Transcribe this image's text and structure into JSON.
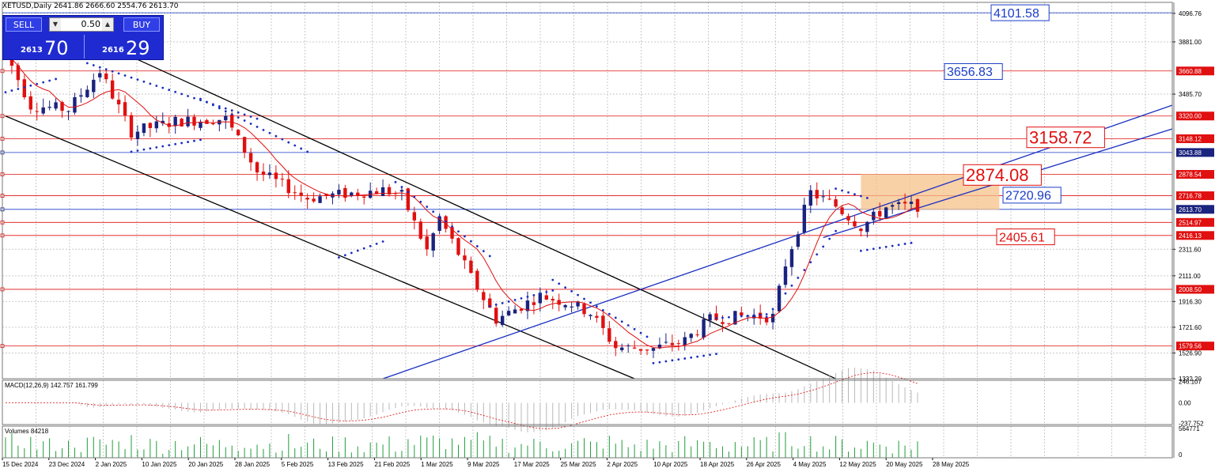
{
  "header": {
    "symbol_info": "XETUSD,Daily  2641.86 2666.60 2554.76 2613.70"
  },
  "trade_panel": {
    "sell_label": "SELL",
    "buy_label": "BUY",
    "lot": "0.50",
    "sell_small": "2613",
    "sell_big": "70",
    "buy_small": "2616",
    "buy_big": "29"
  },
  "price_axis": {
    "ticks": [
      {
        "label": "4096.76",
        "value": 4096.76
      },
      {
        "label": "3881.00",
        "value": 3881
      },
      {
        "label": "3485.70",
        "value": 3485.7
      },
      {
        "label": "2311.60",
        "value": 2311.6
      },
      {
        "label": "2111.00",
        "value": 2111
      },
      {
        "label": "1916.30",
        "value": 1916.3
      },
      {
        "label": "1721.60",
        "value": 1721.6
      },
      {
        "label": "1526.90",
        "value": 1526.9
      },
      {
        "label": "1332.20",
        "value": 1332.2
      }
    ],
    "level_labels": [
      {
        "label": "3660.88",
        "value": 3660.88,
        "color": "#e01010"
      },
      {
        "label": "3320.00",
        "value": 3320,
        "color": "#e01010"
      },
      {
        "label": "3148.12",
        "value": 3148.12,
        "color": "#e01010"
      },
      {
        "label": "3043.88",
        "value": 3043.88,
        "color": "#1a237e"
      },
      {
        "label": "2878.54",
        "value": 2878.54,
        "color": "#e01010"
      },
      {
        "label": "2716.78",
        "value": 2716.78,
        "color": "#e01010"
      },
      {
        "label": "2613.70",
        "value": 2613.7,
        "color": "#1a237e"
      },
      {
        "label": "2514.97",
        "value": 2514.97,
        "color": "#e01010"
      },
      {
        "label": "2416.13",
        "value": 2416.13,
        "color": "#e01010"
      },
      {
        "label": "2008.50",
        "value": 2008.5,
        "color": "#e01010"
      },
      {
        "label": "1579.56",
        "value": 1579.56,
        "color": "#e01010"
      }
    ]
  },
  "annotations": [
    {
      "text": "4101.58",
      "value": 4101.58,
      "color": "#1a3cc8",
      "size": "big"
    },
    {
      "text": "3656.83",
      "value": 3656.83,
      "color": "#1a3cc8",
      "size": "big"
    },
    {
      "text": "3158.72",
      "value": 3158.72,
      "color": "#e01010",
      "size": "huge"
    },
    {
      "text": "2874.08",
      "value": 2874.08,
      "color": "#e01010",
      "size": "huge"
    },
    {
      "text": "2720.96",
      "value": 2720.96,
      "color": "#1a3cc8",
      "size": "big"
    },
    {
      "text": "2405.61",
      "value": 2405.61,
      "color": "#e01010",
      "size": "big"
    }
  ],
  "macd": {
    "label": "MACD(12,26,9) 142.757 161.799",
    "ticks": [
      {
        "label": "246.107",
        "value": 246.107
      },
      {
        "label": "0.00",
        "value": 0
      },
      {
        "label": "-237.752",
        "value": -237.752
      }
    ]
  },
  "volume": {
    "label": "Volumes 84218",
    "ticks": [
      {
        "label": "564771",
        "value": 564771
      },
      {
        "label": "0",
        "value": 0
      }
    ]
  },
  "time_axis": {
    "labels": [
      "15 Dec 2024",
      "23 Dec 2024",
      "2 Jan 2025",
      "10 Jan 2025",
      "20 Jan 2025",
      "28 Jan 2025",
      "5 Feb 2025",
      "13 Feb 2025",
      "21 Feb 2025",
      "1 Mar 2025",
      "9 Mar 2025",
      "17 Mar 2025",
      "25 Mar 2025",
      "2 Apr 2025",
      "10 Apr 2025",
      "18 Apr 2025",
      "26 Apr 2025",
      "4 May 2025",
      "12 May 2025",
      "20 May 2025",
      "28 May 2025"
    ]
  },
  "colors": {
    "bull": "#1a237e",
    "bear": "#e01010",
    "grid": "#c9c9c9",
    "trend_blue": "#1a2fc0",
    "trend_black": "#000000",
    "sar": "#1a2fc0",
    "ma": "#e01010",
    "zone": "#f5c28a"
  },
  "chart_data": {
    "type": "candlestick",
    "key_points": [
      [
        0,
        3800
      ],
      [
        4,
        3400
      ],
      [
        10,
        3370
      ],
      [
        15,
        3660
      ],
      [
        20,
        3200
      ],
      [
        27,
        3280
      ],
      [
        35,
        3300
      ],
      [
        40,
        2900
      ],
      [
        48,
        2700
      ],
      [
        60,
        2760
      ],
      [
        63,
        2720
      ],
      [
        67,
        2300
      ],
      [
        69,
        2550
      ],
      [
        74,
        2100
      ],
      [
        78,
        1780
      ],
      [
        85,
        1960
      ],
      [
        90,
        1900
      ],
      [
        93,
        1830
      ],
      [
        97,
        1570
      ],
      [
        103,
        1560
      ],
      [
        108,
        1620
      ],
      [
        112,
        1780
      ],
      [
        118,
        1810
      ],
      [
        122,
        1800
      ],
      [
        124,
        2200
      ],
      [
        128,
        2740
      ],
      [
        132,
        2640
      ],
      [
        136,
        2480
      ],
      [
        140,
        2630
      ],
      [
        145,
        2640
      ]
    ],
    "parabolic_sar_segments": [
      {
        "from": [
          0,
          3500
        ],
        "to": [
          8,
          3600
        ]
      },
      {
        "from": [
          13,
          3720
        ],
        "to": [
          40,
          3300
        ]
      },
      {
        "from": [
          20,
          3050
        ],
        "to": [
          31,
          3140
        ]
      },
      {
        "from": [
          31,
          3450
        ],
        "to": [
          48,
          3050
        ]
      },
      {
        "from": [
          53,
          2250
        ],
        "to": [
          60,
          2370
        ]
      },
      {
        "from": [
          62,
          2820
        ],
        "to": [
          77,
          2260
        ]
      },
      {
        "from": [
          77,
          1880
        ],
        "to": [
          87,
          2000
        ]
      },
      {
        "from": [
          87,
          2080
        ],
        "to": [
          102,
          1650
        ]
      },
      {
        "from": [
          103,
          1450
        ],
        "to": [
          113,
          1520
        ]
      },
      {
        "from": [
          113,
          1790
        ],
        "to": [
          121,
          1820
        ]
      },
      {
        "from": [
          121,
          1800
        ],
        "to": [
          132,
          2450
        ]
      },
      {
        "from": [
          132,
          2770
        ],
        "to": [
          137,
          2700
        ]
      },
      {
        "from": [
          136,
          2300
        ],
        "to": [
          144,
          2360
        ]
      }
    ],
    "trend_lines": [
      {
        "color": "black",
        "from": [
          0,
          3320
        ],
        "to": [
          100,
          1332
        ]
      },
      {
        "color": "black",
        "from": [
          14,
          3900
        ],
        "to": [
          132,
          1332
        ]
      },
      {
        "color": "blue",
        "from": [
          60,
          1332
        ],
        "to": [
          186,
          3410
        ]
      },
      {
        "color": "blue",
        "from": [
          130,
          2400
        ],
        "to": [
          186,
          3230
        ]
      }
    ],
    "zone": {
      "from_bar": 136,
      "to_bar": 158,
      "low": 2610,
      "high": 2880
    }
  }
}
